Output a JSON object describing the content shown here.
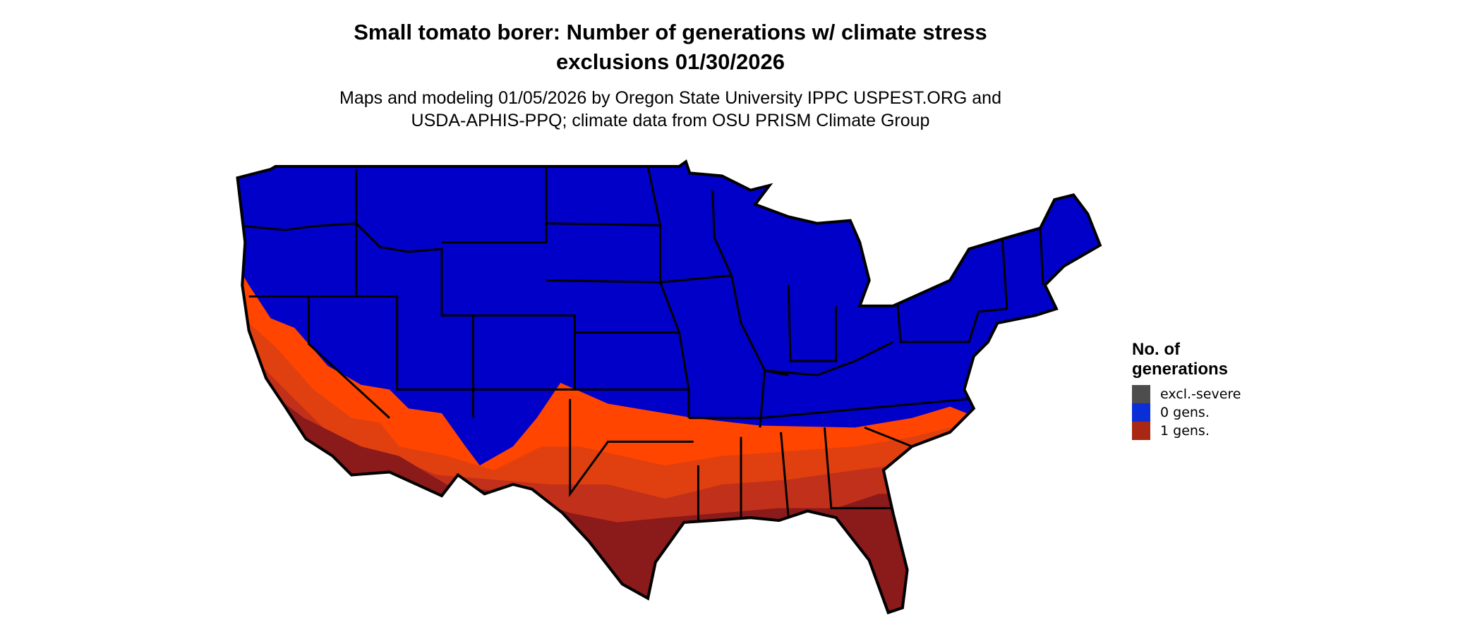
{
  "title": {
    "line1": "Small tomato borer: Number of generations w/ climate stress",
    "line2": "exclusions 01/30/2026"
  },
  "subtitle": {
    "line1": "Maps and modeling 01/05/2026 by Oregon State University IPPC USPEST.ORG and",
    "line2": "USDA-APHIS-PPQ; climate data from OSU PRISM Climate Group"
  },
  "map": {
    "region": "Contiguous United States",
    "colors": {
      "zero_gens": "#0000c8",
      "one_gens_light": "#ff4500",
      "one_gens_mid": "#e0400f",
      "one_gens_dark": "#c0301a",
      "one_gens_darkest": "#8b1a1a",
      "border": "#000000"
    }
  },
  "legend": {
    "title_line1": "No. of",
    "title_line2": "generations",
    "items": [
      {
        "label": "excl.-severe",
        "color": "#4d4d4d"
      },
      {
        "label": "0 gens.",
        "color": "#0a2fd6"
      },
      {
        "label": "1 gens.",
        "color": "#a82814"
      }
    ]
  }
}
